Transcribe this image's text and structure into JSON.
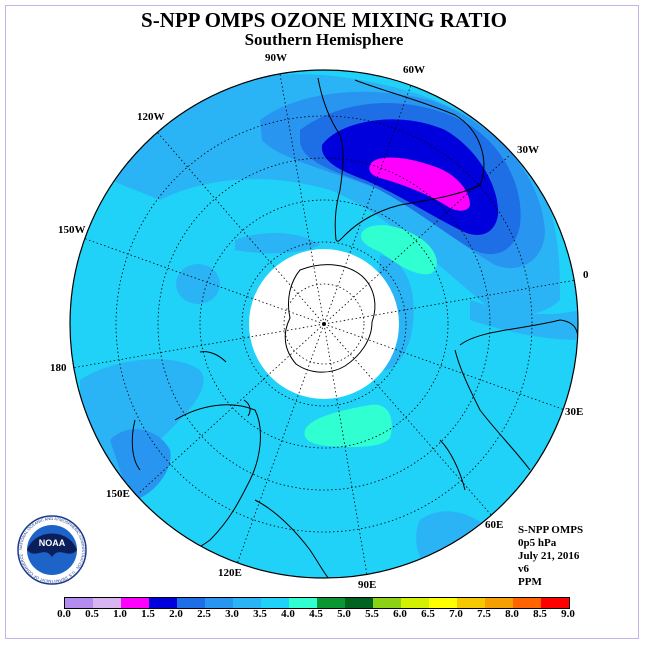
{
  "title": "S-NPP OMPS OZONE MIXING RATIO",
  "subtitle": "Southern Hemisphere",
  "info": {
    "instrument": "S-NPP OMPS",
    "level": "0p5 hPa",
    "date": "July 21, 2016",
    "version": "v6",
    "units": "PPM"
  },
  "longitude_labels": [
    "90W",
    "60W",
    "30W",
    "0",
    "30E",
    "60E",
    "90E",
    "120E",
    "150E",
    "180",
    "150W",
    "120W"
  ],
  "colorbar": {
    "ticks": [
      "0.0",
      "0.5",
      "1.0",
      "1.5",
      "2.0",
      "2.5",
      "3.0",
      "3.5",
      "4.0",
      "4.5",
      "5.0",
      "5.5",
      "6.0",
      "6.5",
      "7.0",
      "7.5",
      "8.0",
      "8.5",
      "9.0"
    ],
    "colors": [
      "#b48cf0",
      "#d8b4f0",
      "#ff00ff",
      "#0000dd",
      "#1e6ee6",
      "#2896f0",
      "#2ab4f5",
      "#20d2f8",
      "#30ffd2",
      "#0a9632",
      "#006420",
      "#8cd214",
      "#d2f000",
      "#ffff00",
      "#f5c800",
      "#f5a000",
      "#ff6400",
      "#ff0000",
      "#8c5a3c"
    ]
  },
  "logo": {
    "text": "NOAA",
    "ring_text": "NATIONAL OCEANIC AND ATMOSPHERIC ADMINISTRATION · U.S. DEPARTMENT OF COMMERCE"
  }
}
